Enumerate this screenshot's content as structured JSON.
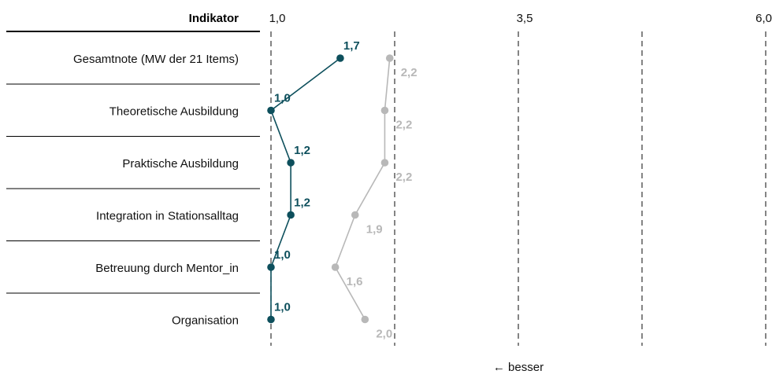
{
  "header": {
    "indicator_label": "Indikator"
  },
  "footer": {
    "note": "← besser"
  },
  "colors": {
    "main": "#0d4f5c",
    "comparison": "#b8b8b8",
    "grid": "#333333",
    "rule": "#000000"
  },
  "chart_data": {
    "type": "line",
    "orientation": "horizontal",
    "xlim": [
      1.0,
      6.0
    ],
    "x_ticks": [
      1.0,
      2.25,
      3.5,
      4.75,
      6.0
    ],
    "x_tick_labels": [
      "1,0",
      "",
      "3,5",
      "",
      "6,0"
    ],
    "grid": true,
    "categories": [
      "Gesamtnote (MW der 21 Items)",
      "Theoretische Ausbildung",
      "Praktische Ausbildung",
      "Integration in Stationsalltag",
      "Betreuung durch Mentor_in",
      "Organisation"
    ],
    "series": [
      {
        "key": "main",
        "values": [
          1.7,
          1.0,
          1.2,
          1.2,
          1.0,
          1.0
        ],
        "labels": [
          "1,7",
          "1,0",
          "1,2",
          "1,2",
          "1,0",
          "1,0"
        ]
      },
      {
        "key": "comparison",
        "values": [
          2.2,
          2.15,
          2.15,
          1.85,
          1.65,
          1.95
        ],
        "labels": [
          "2,2",
          "2,2",
          "2,2",
          "1,9",
          "1,6",
          "2,0"
        ]
      }
    ]
  }
}
